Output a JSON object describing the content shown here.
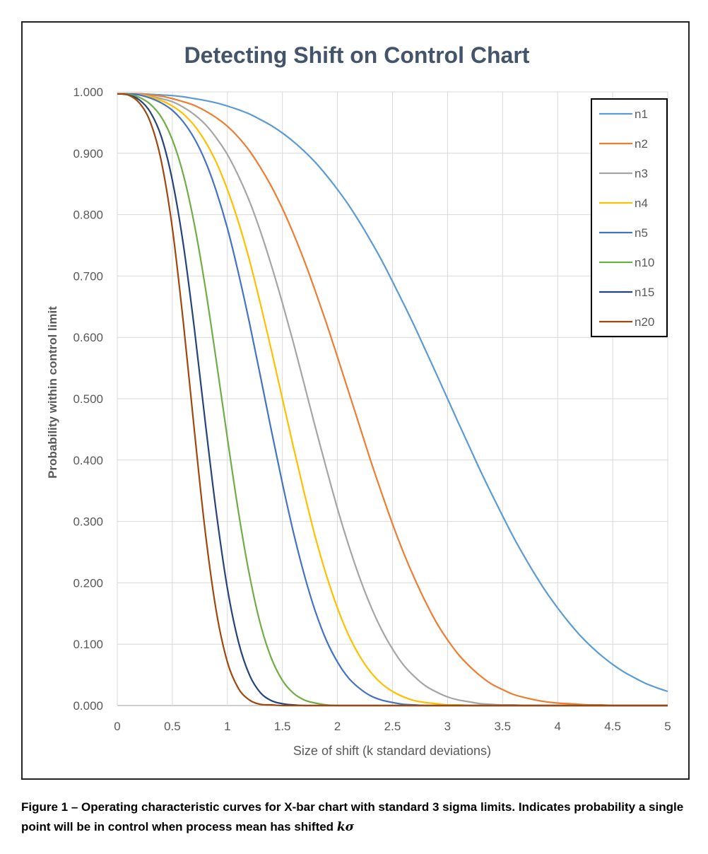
{
  "caption": {
    "text": "Figure 1 – Operating characteristic curves for X-bar chart with standard 3 sigma limits. Indicates probability a single point will be in control when process mean has shifted",
    "symbol": "kσ"
  },
  "chart_data": {
    "type": "line",
    "title": "Detecting Shift on Control Chart",
    "xlabel": "Size of shift (k standard deviations)",
    "ylabel": "Probability within control limit",
    "xlim": [
      0,
      5
    ],
    "ylim": [
      0,
      1
    ],
    "xticks": [
      "0",
      "0.5",
      "1",
      "1.5",
      "2",
      "2.5",
      "3",
      "3.5",
      "4",
      "4.5",
      "5"
    ],
    "yticks": [
      "0.000",
      "0.100",
      "0.200",
      "0.300",
      "0.400",
      "0.500",
      "0.600",
      "0.700",
      "0.800",
      "0.900",
      "1.000"
    ],
    "grid": true,
    "legend": "top-right",
    "x": [
      0,
      0.1,
      0.2,
      0.3,
      0.4,
      0.5,
      0.6,
      0.7,
      0.8,
      0.9,
      1,
      1.1,
      1.2,
      1.3,
      1.4,
      1.5,
      1.6,
      1.7,
      1.8,
      1.9,
      2,
      2.1,
      2.2,
      2.3,
      2.4,
      2.5,
      2.6,
      2.7,
      2.8,
      2.9,
      3,
      3.1,
      3.2,
      3.3,
      3.4,
      3.5,
      3.6,
      3.7,
      3.8,
      3.9,
      4,
      4.1,
      4.2,
      4.3,
      4.4,
      4.5,
      4.6,
      4.7,
      4.8,
      4.9,
      5
    ],
    "series": [
      {
        "name": "n1",
        "color": "#5B9BD5",
        "values": [
          0.997,
          0.997,
          0.997,
          0.996,
          0.995,
          0.994,
          0.992,
          0.989,
          0.986,
          0.982,
          0.977,
          0.971,
          0.964,
          0.955,
          0.945,
          0.933,
          0.919,
          0.903,
          0.885,
          0.864,
          0.841,
          0.816,
          0.788,
          0.758,
          0.726,
          0.691,
          0.655,
          0.618,
          0.579,
          0.54,
          0.5,
          0.46,
          0.421,
          0.382,
          0.345,
          0.309,
          0.274,
          0.242,
          0.212,
          0.184,
          0.159,
          0.136,
          0.115,
          0.097,
          0.081,
          0.067,
          0.055,
          0.045,
          0.036,
          0.029,
          0.023
        ]
      },
      {
        "name": "n2",
        "color": "#ED7D31",
        "values": [
          0.997,
          0.997,
          0.997,
          0.995,
          0.993,
          0.989,
          0.984,
          0.978,
          0.969,
          0.958,
          0.944,
          0.926,
          0.904,
          0.877,
          0.846,
          0.81,
          0.769,
          0.724,
          0.675,
          0.623,
          0.568,
          0.512,
          0.456,
          0.4,
          0.347,
          0.296,
          0.249,
          0.207,
          0.169,
          0.135,
          0.107,
          0.083,
          0.064,
          0.048,
          0.035,
          0.026,
          0.018,
          0.013,
          0.009,
          0.006,
          0.004,
          0.003,
          0.002,
          0.001,
          0.001,
          0,
          0,
          0,
          0,
          0,
          0
        ]
      },
      {
        "name": "n3",
        "color": "#A5A5A5",
        "values": [
          0.997,
          0.997,
          0.996,
          0.993,
          0.989,
          0.984,
          0.975,
          0.963,
          0.947,
          0.925,
          0.898,
          0.863,
          0.822,
          0.773,
          0.717,
          0.656,
          0.591,
          0.522,
          0.453,
          0.386,
          0.321,
          0.262,
          0.209,
          0.163,
          0.124,
          0.092,
          0.066,
          0.047,
          0.032,
          0.022,
          0.014,
          0.009,
          0.006,
          0.003,
          0.002,
          0.001,
          0.001,
          0,
          0,
          0,
          0,
          0,
          0,
          0,
          0,
          0,
          0,
          0,
          0,
          0,
          0
        ]
      },
      {
        "name": "n4",
        "color": "#FFC000",
        "values": [
          0.997,
          0.997,
          0.995,
          0.992,
          0.986,
          0.977,
          0.964,
          0.945,
          0.919,
          0.885,
          0.841,
          0.788,
          0.726,
          0.655,
          0.579,
          0.5,
          0.421,
          0.345,
          0.274,
          0.212,
          0.159,
          0.115,
          0.081,
          0.055,
          0.036,
          0.023,
          0.014,
          0.008,
          0.005,
          0.003,
          0.001,
          0.001,
          0,
          0,
          0,
          0,
          0,
          0,
          0,
          0,
          0,
          0,
          0,
          0,
          0,
          0,
          0,
          0,
          0,
          0,
          0
        ]
      },
      {
        "name": "n5",
        "color": "#4472C4",
        "values": [
          0.997,
          0.997,
          0.995,
          0.99,
          0.982,
          0.97,
          0.951,
          0.924,
          0.887,
          0.838,
          0.778,
          0.705,
          0.624,
          0.537,
          0.448,
          0.362,
          0.282,
          0.212,
          0.153,
          0.106,
          0.071,
          0.045,
          0.028,
          0.016,
          0.009,
          0.005,
          0.002,
          0.001,
          0,
          0,
          0,
          0,
          0,
          0,
          0,
          0,
          0,
          0,
          0,
          0,
          0,
          0,
          0,
          0,
          0,
          0,
          0,
          0,
          0,
          0,
          0
        ]
      },
      {
        "name": "n10",
        "color": "#70AD47",
        "values": [
          0.997,
          0.996,
          0.991,
          0.98,
          0.959,
          0.922,
          0.865,
          0.784,
          0.681,
          0.561,
          0.436,
          0.316,
          0.213,
          0.133,
          0.077,
          0.041,
          0.02,
          0.009,
          0.004,
          0.001,
          0,
          0,
          0,
          0,
          0,
          0,
          0,
          0,
          0,
          0,
          0,
          0,
          0,
          0,
          0,
          0,
          0,
          0,
          0,
          0,
          0,
          0,
          0,
          0,
          0,
          0,
          0,
          0,
          0,
          0,
          0
        ]
      },
      {
        "name": "n15",
        "color": "#264478",
        "values": [
          0.997,
          0.995,
          0.987,
          0.967,
          0.927,
          0.856,
          0.751,
          0.614,
          0.461,
          0.314,
          0.191,
          0.104,
          0.05,
          0.021,
          0.008,
          0.003,
          0.001,
          0,
          0,
          0,
          0,
          0,
          0,
          0,
          0,
          0,
          0,
          0,
          0,
          0,
          0,
          0,
          0,
          0,
          0,
          0,
          0,
          0,
          0,
          0,
          0,
          0,
          0,
          0,
          0,
          0,
          0,
          0,
          0,
          0,
          0
        ]
      },
      {
        "name": "n20",
        "color": "#9E480E",
        "values": [
          0.997,
          0.995,
          0.982,
          0.951,
          0.887,
          0.778,
          0.624,
          0.448,
          0.282,
          0.153,
          0.071,
          0.028,
          0.009,
          0.002,
          0.001,
          0,
          0,
          0,
          0,
          0,
          0,
          0,
          0,
          0,
          0,
          0,
          0,
          0,
          0,
          0,
          0,
          0,
          0,
          0,
          0,
          0,
          0,
          0,
          0,
          0,
          0,
          0,
          0,
          0,
          0,
          0,
          0,
          0,
          0,
          0,
          0
        ]
      }
    ]
  }
}
